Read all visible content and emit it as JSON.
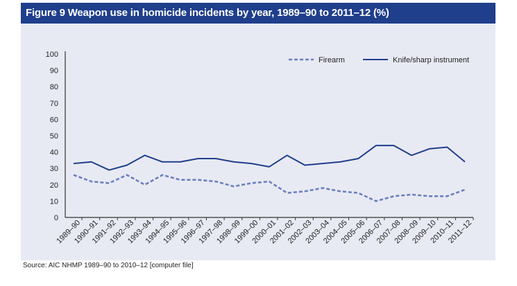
{
  "figure": {
    "title": "Figure 9 Weapon use in homicide incidents by year, 1989–90 to 2011–12 (%)",
    "source": "Source: AIC NHMP 1989–90 to 2010–12 [computer file]"
  },
  "colors": {
    "title_bg": "#1f3e8c",
    "panel_bg": "#e8eaf3",
    "knife": "#1f3e8c",
    "firearm": "#6b7fbf"
  },
  "chart_data": {
    "type": "line",
    "title": "Figure 9 Weapon use in homicide incidents by year, 1989–90 to 2011–12 (%)",
    "xlabel": "",
    "ylabel": "",
    "ylim": [
      0,
      100
    ],
    "yticks": [
      0,
      10,
      20,
      30,
      40,
      50,
      60,
      70,
      80,
      90,
      100
    ],
    "grid": false,
    "legend_position": "top-right",
    "categories": [
      "1989–90",
      "1990–91",
      "1991–92",
      "1992–93",
      "1993–94",
      "1994–95",
      "1995–96",
      "1996–97",
      "1997–98",
      "1998–99",
      "1999–00",
      "2000–01",
      "2001–02",
      "2002–03",
      "2003–04",
      "2004–05",
      "2005–06",
      "2006–07",
      "2007–08",
      "2008–09",
      "2009–10",
      "2010–11",
      "2011–12"
    ],
    "series": [
      {
        "name": "Firearm",
        "style": "dashed",
        "values": [
          26,
          22,
          21,
          26,
          20,
          26,
          23,
          23,
          22,
          19,
          21,
          22,
          15,
          16,
          18,
          16,
          15,
          10,
          13,
          14,
          13,
          13,
          17
        ]
      },
      {
        "name": "Knife/sharp instrument",
        "style": "solid",
        "values": [
          33,
          34,
          29,
          32,
          38,
          34,
          34,
          36,
          36,
          34,
          33,
          31,
          38,
          32,
          33,
          34,
          36,
          44,
          44,
          38,
          42,
          43,
          34
        ]
      }
    ]
  }
}
